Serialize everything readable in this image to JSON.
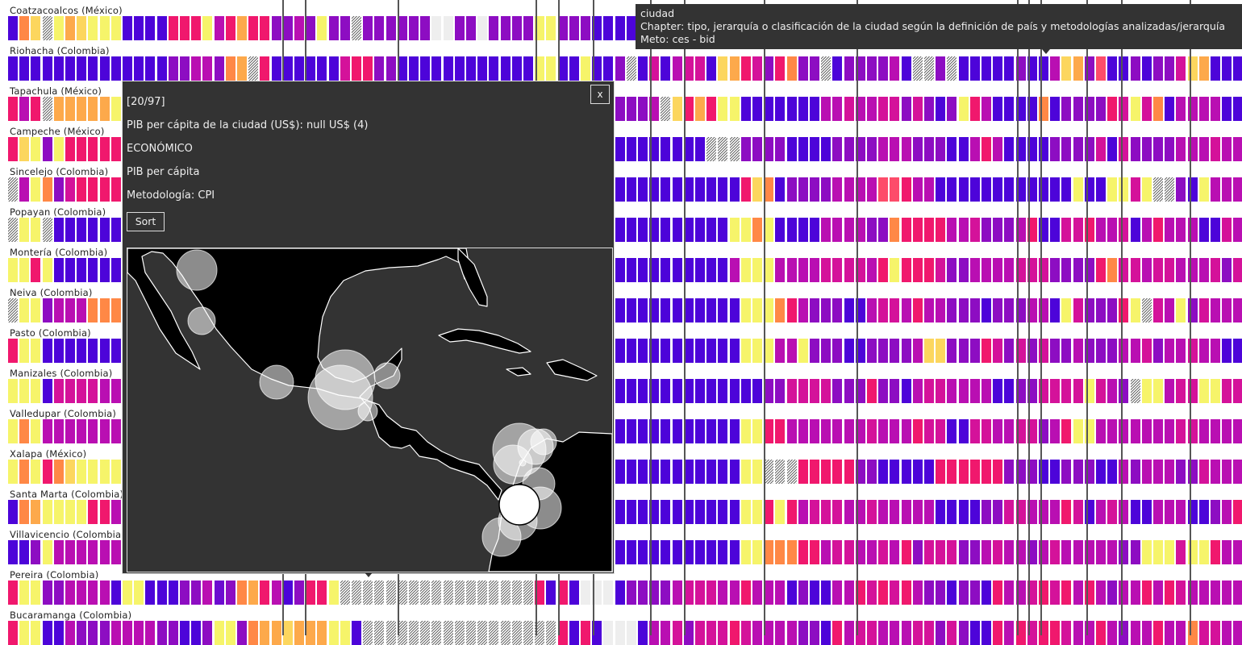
{
  "palette": {
    "Y": "#f6f46a",
    "y": "#fcd65e",
    "O": "#fda94b",
    "o": "#ff8846",
    "P": "#fd4c6a",
    "p": "#f0186d",
    "M": "#d4129a",
    "m": "#b90fb2",
    "V": "#8d0dc2",
    "v": "#6d0bd0",
    "B": "#4d04d9",
    "X": "hatch",
    "E": "empty"
  },
  "rows": [
    {
      "label": "Coatzacoalcos (México)",
      "cells": "BoyXYOyYYYBBBBpppYmpOppVVmVYVVXVVVVVVEEVVEVVVVYYVVVBBBBBBBBBVVVVmmpmXVVVVVVmVVXBBVVmmBVVXMpoVVMMmmpVVVVVVmBmm"
    },
    {
      "label": "Riohacha (Colombia)",
      "cells": "BBBBBBBBBBBBBBVVmmVoOXpBBBBBBMppVVBBBBBBBBBBBBYYBBYBBVXBMBmMMByOpMVpoVVXBVVVVmBXXVXBBBBBVBBmyOVPBBVBVVMyOBBBBB"
    },
    {
      "label": "Tapachula (México)",
      "cells": "pmpXOOOOOYYYBBVVMMppVMmmmVVVVmVmmMMMMpVVYYYYXXXmBBBBVVVVmXypOpYYBBBBBBBmmMmmMMVMVBVYpmBBBBoBVVVVpMYMoBmmmmBBB"
    },
    {
      "label": "Campeche (México)",
      "cells": "pyYVYppppppBBBBBBBBBBBVVVBBBBBBBBBBBBBBBBBBBBBBBBBBBBBBBBBBBBXXXVVVVBBBBVVVVmmmVVVBBmpmBBBBVVVVMBMVVVVmmmMmmmmMMM"
    },
    {
      "label": "Sincelejo (Colombia)",
      "cells": "XmYoVMppppppBBBBBBBBBBBBBBBBBBBBBBBBBBBBBBBBBBBBBBBBBBBBBBBBBBBBpyoBVVVVmmmmPPpmmBBBBBBBBBBBBYBBYYMYXXVBYmmmmVV"
    },
    {
      "label": "Popayan (Colombia)",
      "cells": "XYYXBBBBBBBBBBBBBBBBBBBBBBBBBBBBBBBBBBBBBBBBBBBBBBBBBBBBBBBBBBBYYoYBBBBmmmmVVoppppmmMVVVmpBBMMpmmMBmpmmmBBMmmmYm"
    },
    {
      "label": "Montería (Colombia)",
      "cells": "YYpYBBBBBBBBBBBBBBBBBBBBBBBBBBBBBBBBBBBBBBBBBBBBBBBBBBBBBBBBBBBmYYYmmmmMMMMmpYpppMVVmmmmMMMVVVVpoMMmMMmmmMVMMmmm"
    },
    {
      "label": "Neiva (Colombia)",
      "cells": "XYYVmmmoooBBBBBBBBBBBBBBBBBBBBBBBBBBBBBBBBBBBBBBBBBBBBBBBBBBBBBBYYYopmVVVBBmMMmpmmVVVBVVVmmBYMVVVpYXMmYVMmmmmmm"
    },
    {
      "label": "Pasto (Colombia)",
      "cells": "pYYBBBBBBBBBBBBBBBBBBBBBBBBBBBBBBBBBBBBBBBBBBBBBBBBBBBBBBBBBBBBBYYYmmYVVVBBVVVVmyyVVVpMVMVMVVmVVVmmMVmmMmmBBVVV"
    },
    {
      "label": "Manizales (Colombia)",
      "cells": "YYYBMMMMmmBBBBBBBBBBBBBBBBBBBBBBBBBBBBBBBBBBBBBBBBBBBBBBBBBBBBBBBBVVMMMMVVVpVVBmMMmmmmBBVVMMMMYMmVXYYmMMYYMMMMm"
    },
    {
      "label": "Valledupar (Colombia)",
      "cells": "YoYmmmmmmmBBBBBBBBBBBBBBBBBBBBBBBBBBBBBBBBBBBBBBBBBBBBBBBBBBBBBBYYppmmmmmmmMmmmpMMBBMMmmMMVmpYYmmmmmmmMMmmmmMMm"
    },
    {
      "label": "Xalapa (México)",
      "cells": "YoYpoyYYYYBBBBBBBBBBBBBBBBBBBBBBBBBBBBBBBBBBBBBBBBBBBBBBBBBBBBBBYYXXXpppppVVBBBBBppppppVVVBBVVVBBmVmmmVVMmmmMVMM"
    },
    {
      "label": "Santa Marta (Colombia)",
      "cells": "BoOYYYYppmBBBBBBBBBBBBBBBBBBBBBBBBBBBBBBBBBBBBBBBBBBBBBBBBBBBBBBYYpYpmMMMmmMmmmmmBBBBVVMMmmmpMBmMmBBmmmBBVmpmmmB"
    },
    {
      "label": "Villavicencio (Colombia)",
      "cells": "BBVYmmmmmmBBBBBBBBBBBBBBBBBBBBBBBBBBBBBBBBBBBBBBBBBBBBBBBBBBBBBBYYoooppmMMmmMmpVMMMVVmMmmVmMmmmmmVVYYYMYYpmmmmmm"
    },
    {
      "label": "Pereira (Colombia)",
      "cells": "pYYVVmmmmBYYBBBVVmvVoOpmBVppYXXXXXXXXXXXXXXXXXpBpBEEEBVVVVmMMMmmpmmmBVBBmmpMpMpmVVBVVBpmmMpMpmpmVmmpmpMmmmmmMp"
    },
    {
      "label": "Bucaramanga (Colombia)",
      "cells": "pYYBBmVVVmmmmVVBBVYYVoOOyOOOYYBXXXXXXXXXXXXXXXXXpBpBEEEBmmMVMMMpMmmmmVVBpmMMmmmMMVMVBBpmpMppMmmpmVmmpmmoMMmmBpM"
    }
  ],
  "tooltip": {
    "title": "ciudad",
    "chapter": "Chapter: tipo, jerarquía o clasificación de la ciudad según la definición de país y metodologías analizadas/jerarquía",
    "meto": "Meto: ces - bid"
  },
  "panel": {
    "counter": "[20/97]",
    "indicator": "PIB per cápita de la ciudad (US$): null US$ (4)",
    "category": "ECONÓMICO",
    "subcategory": "PIB per cápita",
    "methodology": "Metodología: CPI",
    "sort_label": "Sort",
    "close_label": "x"
  }
}
